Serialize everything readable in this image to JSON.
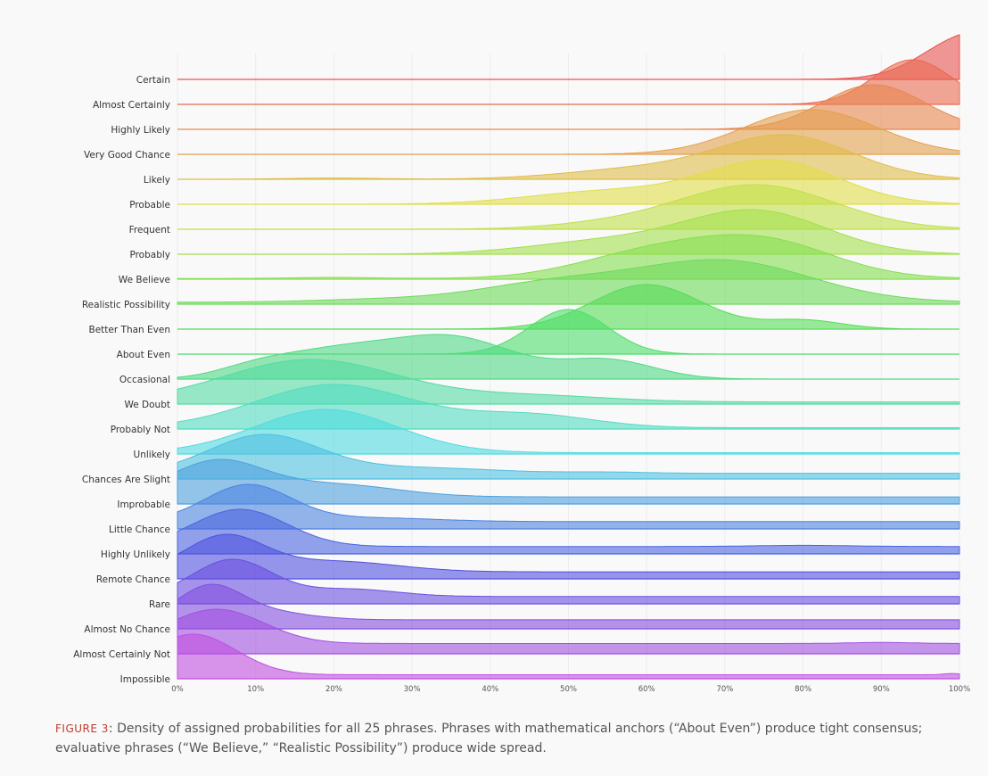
{
  "caption": {
    "label": "FIGURE 3",
    "text": ": Density of assigned probabilities for all 25 phrases. Phrases with mathematical anchors (“About Even”) produce tight consensus; evaluative phrases (“We Believe,” “Realistic Possibility”) produce wide spread."
  },
  "chart_data": {
    "type": "area",
    "subtype": "ridgeline-density",
    "title": "",
    "xlabel": "",
    "ylabel": "",
    "xlim": [
      0,
      100
    ],
    "x_unit": "%",
    "x_ticks": [
      "0%",
      "10%",
      "20%",
      "30%",
      "40%",
      "50%",
      "60%",
      "70%",
      "80%",
      "90%",
      "100%"
    ],
    "grid": "vertical",
    "peak_scale": 1.0,
    "series": [
      {
        "name": "Certain",
        "color": "#e8524f",
        "components": [
          {
            "mu": 102,
            "sd": 6,
            "w": 1.0
          }
        ],
        "floor": 0.0
      },
      {
        "name": "Almost Certainly",
        "color": "#e96a50",
        "components": [
          {
            "mu": 94,
            "sd": 5,
            "w": 1.0
          }
        ],
        "floor": 0.0
      },
      {
        "name": "Highly Likely",
        "color": "#e8874f",
        "components": [
          {
            "mu": 89,
            "sd": 6.5,
            "w": 1.0
          }
        ],
        "floor": 0.0
      },
      {
        "name": "Very Good Chance",
        "color": "#e3a04d",
        "components": [
          {
            "mu": 81,
            "sd": 8.5,
            "w": 1.0
          }
        ],
        "floor": 0.0
      },
      {
        "name": "Likely",
        "color": "#e0bd4a",
        "components": [
          {
            "mu": 78,
            "sd": 8.5,
            "w": 1.0
          },
          {
            "mu": 60,
            "sd": 10,
            "w": 0.25
          },
          {
            "mu": 20,
            "sd": 6,
            "w": 0.03
          }
        ],
        "floor": 0.0
      },
      {
        "name": "Probable",
        "color": "#e0de4a",
        "components": [
          {
            "mu": 76,
            "sd": 8.5,
            "w": 1.0
          },
          {
            "mu": 55,
            "sd": 10,
            "w": 0.3
          }
        ],
        "floor": 0.0
      },
      {
        "name": "Frequent",
        "color": "#bfe04a",
        "components": [
          {
            "mu": 74,
            "sd": 10,
            "w": 1.0
          },
          {
            "mu": 55,
            "sd": 8,
            "w": 0.1
          }
        ],
        "floor": 0.0
      },
      {
        "name": "Probably",
        "color": "#a3e04c",
        "components": [
          {
            "mu": 74,
            "sd": 9,
            "w": 1.0
          },
          {
            "mu": 55,
            "sd": 10,
            "w": 0.3
          }
        ],
        "floor": 0.0
      },
      {
        "name": "We Believe",
        "color": "#86de50",
        "components": [
          {
            "mu": 75,
            "sd": 9,
            "w": 1.0
          },
          {
            "mu": 60,
            "sd": 9,
            "w": 0.65
          },
          {
            "mu": 20,
            "sd": 5,
            "w": 0.03
          }
        ],
        "floor": 0.02
      },
      {
        "name": "Realistic Possibility",
        "color": "#6cdb58",
        "components": [
          {
            "mu": 70,
            "sd": 11,
            "w": 1.0
          },
          {
            "mu": 48,
            "sd": 10,
            "w": 0.45
          },
          {
            "mu": 25,
            "sd": 8,
            "w": 0.06
          }
        ],
        "floor": 0.05
      },
      {
        "name": "Better Than Even",
        "color": "#55dc55",
        "components": [
          {
            "mu": 60,
            "sd": 7,
            "w": 1.0
          },
          {
            "mu": 80,
            "sd": 5,
            "w": 0.2
          }
        ],
        "floor": 0.0
      },
      {
        "name": "About Even",
        "color": "#4cde6a",
        "components": [
          {
            "mu": 50,
            "sd": 5,
            "w": 1.0
          }
        ],
        "floor": 0.0
      },
      {
        "name": "Occasional",
        "color": "#4fd984",
        "components": [
          {
            "mu": 35,
            "sd": 8,
            "w": 1.0
          },
          {
            "mu": 20,
            "sd": 7,
            "w": 0.6
          },
          {
            "mu": 55,
            "sd": 6,
            "w": 0.45
          },
          {
            "mu": 10,
            "sd": 5,
            "w": 0.25
          }
        ],
        "floor": 0.0
      },
      {
        "name": "We Doubt",
        "color": "#52dba2",
        "components": [
          {
            "mu": 17,
            "sd": 11,
            "w": 1.0
          },
          {
            "mu": 45,
            "sd": 10,
            "w": 0.15
          }
        ],
        "floor": 0.05
      },
      {
        "name": "Probably Not",
        "color": "#52dcc0",
        "components": [
          {
            "mu": 20,
            "sd": 10,
            "w": 1.0
          },
          {
            "mu": 45,
            "sd": 8,
            "w": 0.3
          }
        ],
        "floor": 0.03
      },
      {
        "name": "Unlikely",
        "color": "#4fdbe0",
        "components": [
          {
            "mu": 19,
            "sd": 9,
            "w": 1.0
          }
        ],
        "floor": 0.03
      },
      {
        "name": "Chances Are Slight",
        "color": "#4fc0e0",
        "components": [
          {
            "mu": 11,
            "sd": 7,
            "w": 1.0
          },
          {
            "mu": 30,
            "sd": 10,
            "w": 0.15
          },
          {
            "mu": 55,
            "sd": 5,
            "w": 0.03
          }
        ],
        "floor": 0.15
      },
      {
        "name": "Improbable",
        "color": "#4ca0e0",
        "components": [
          {
            "mu": 5,
            "sd": 6,
            "w": 1.0
          },
          {
            "mu": 20,
            "sd": 8,
            "w": 0.35
          }
        ],
        "floor": 0.2
      },
      {
        "name": "Little Chance",
        "color": "#4c82e0",
        "components": [
          {
            "mu": 9,
            "sd": 5.5,
            "w": 1.0
          },
          {
            "mu": 25,
            "sd": 8,
            "w": 0.1
          }
        ],
        "floor": 0.2
      },
      {
        "name": "Highly Unlikely",
        "color": "#4a64e0",
        "components": [
          {
            "mu": 8,
            "sd": 6,
            "w": 1.0
          },
          {
            "mu": 80,
            "sd": 6,
            "w": 0.03
          }
        ],
        "floor": 0.2
      },
      {
        "name": "Remote Chance",
        "color": "#5050e0",
        "components": [
          {
            "mu": 6,
            "sd": 5,
            "w": 1.0
          },
          {
            "mu": 20,
            "sd": 8,
            "w": 0.3
          }
        ],
        "floor": 0.2
      },
      {
        "name": "Rare",
        "color": "#6a4fe0",
        "components": [
          {
            "mu": 7,
            "sd": 5,
            "w": 1.0
          },
          {
            "mu": 22,
            "sd": 6,
            "w": 0.2
          }
        ],
        "floor": 0.2
      },
      {
        "name": "Almost No Chance",
        "color": "#834ee0",
        "components": [
          {
            "mu": 4,
            "sd": 4,
            "w": 1.0
          },
          {
            "mu": 10,
            "sd": 6,
            "w": 0.3
          }
        ],
        "floor": 0.3
      },
      {
        "name": "Almost Certainly Not",
        "color": "#a04fe0",
        "components": [
          {
            "mu": 5,
            "sd": 6,
            "w": 1.0
          },
          {
            "mu": 90,
            "sd": 4,
            "w": 0.03
          }
        ],
        "floor": 0.3
      },
      {
        "name": "Impossible",
        "color": "#c04fe0",
        "components": [
          {
            "mu": 2,
            "sd": 5.5,
            "w": 1.0
          },
          {
            "mu": 99,
            "sd": 1,
            "w": 0.03
          }
        ],
        "floor": 0.1
      }
    ]
  }
}
